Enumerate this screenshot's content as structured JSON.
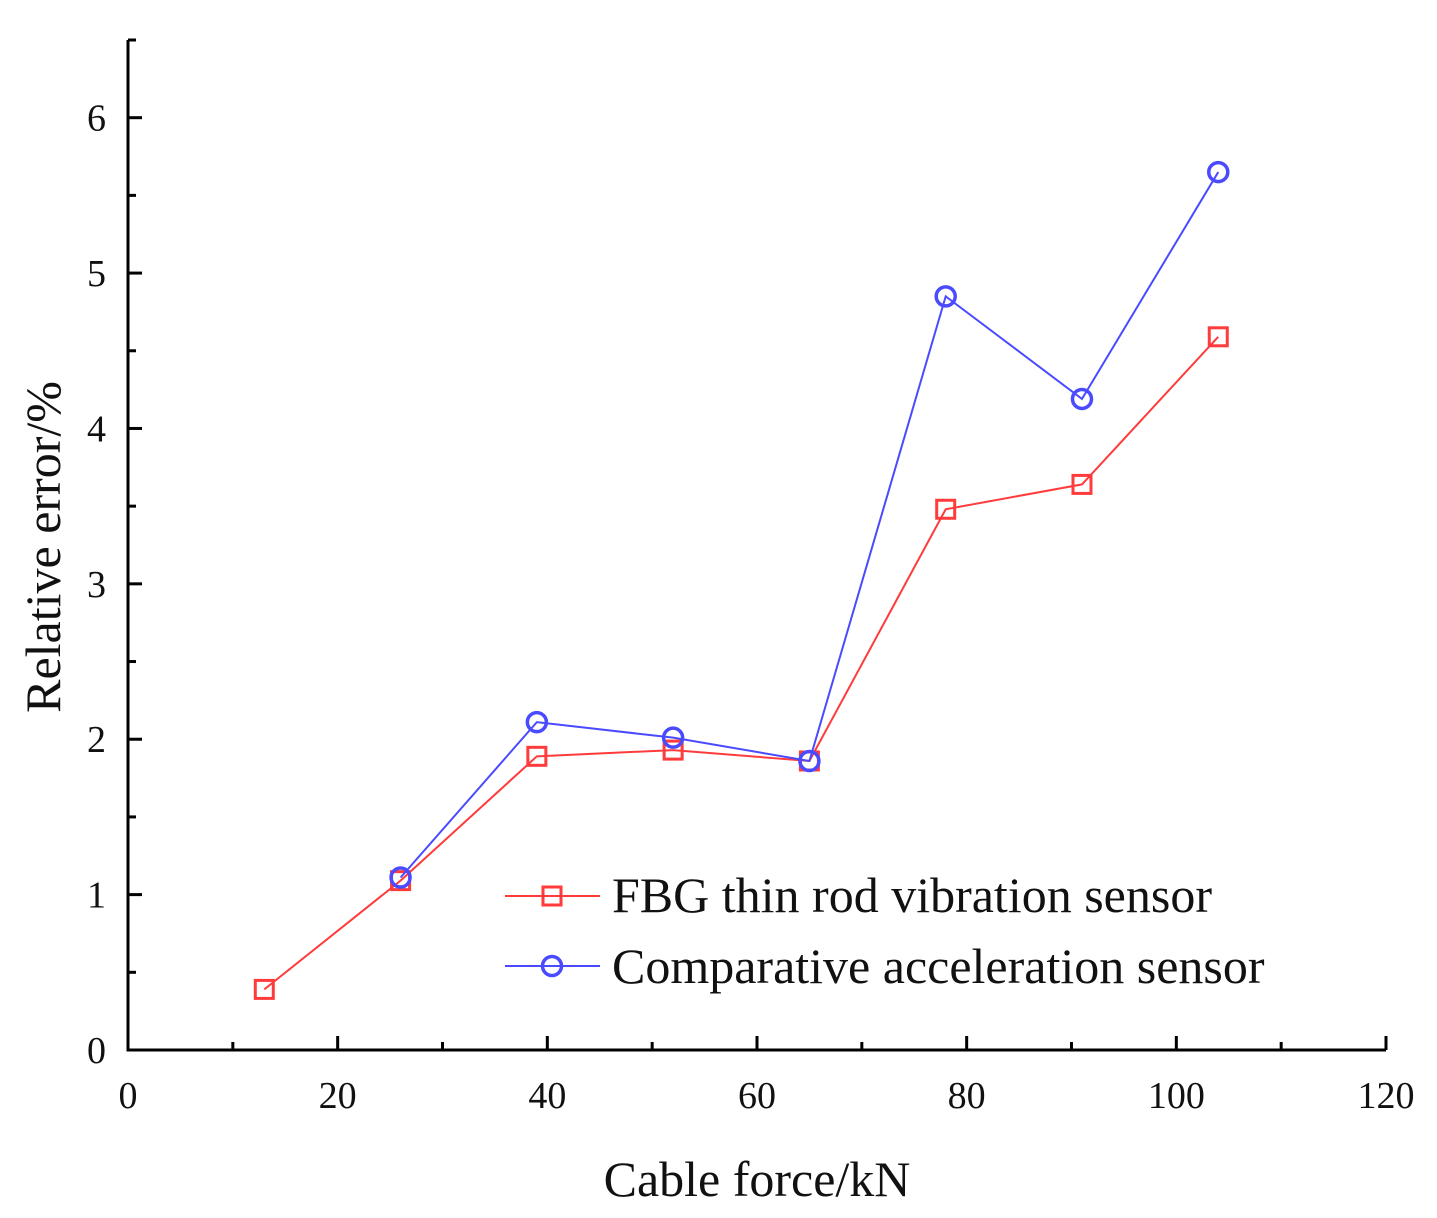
{
  "chart_data": {
    "type": "line",
    "title": "",
    "xlabel": "Cable force/kN",
    "ylabel": "Relative error/%",
    "xlim": [
      0,
      120
    ],
    "ylim": [
      0,
      6.5
    ],
    "xticks": [
      0,
      20,
      40,
      60,
      80,
      100,
      120
    ],
    "xtick_labels": [
      "0",
      "20",
      "40",
      "60",
      "80",
      "100",
      "120"
    ],
    "yticks": [
      0,
      1,
      2,
      3,
      4,
      5,
      6
    ],
    "ytick_labels": [
      "0",
      "1",
      "2",
      "3",
      "4",
      "5",
      "6"
    ],
    "grid": false,
    "legend_position": "lower-right",
    "series": [
      {
        "name": "FBG thin rod vibration sensor",
        "color": "#ff3b3b",
        "marker": "square",
        "x": [
          13,
          26,
          39,
          52,
          65,
          78,
          91,
          104
        ],
        "y": [
          0.39,
          1.09,
          1.89,
          1.93,
          1.86,
          3.48,
          3.64,
          4.59
        ]
      },
      {
        "name": "Comparative acceleration sensor",
        "color": "#4a4aff",
        "marker": "circle",
        "x": [
          26,
          39,
          52,
          65,
          78,
          91,
          104
        ],
        "y": [
          1.11,
          2.11,
          2.01,
          1.86,
          4.85,
          4.19,
          5.65
        ]
      }
    ]
  }
}
